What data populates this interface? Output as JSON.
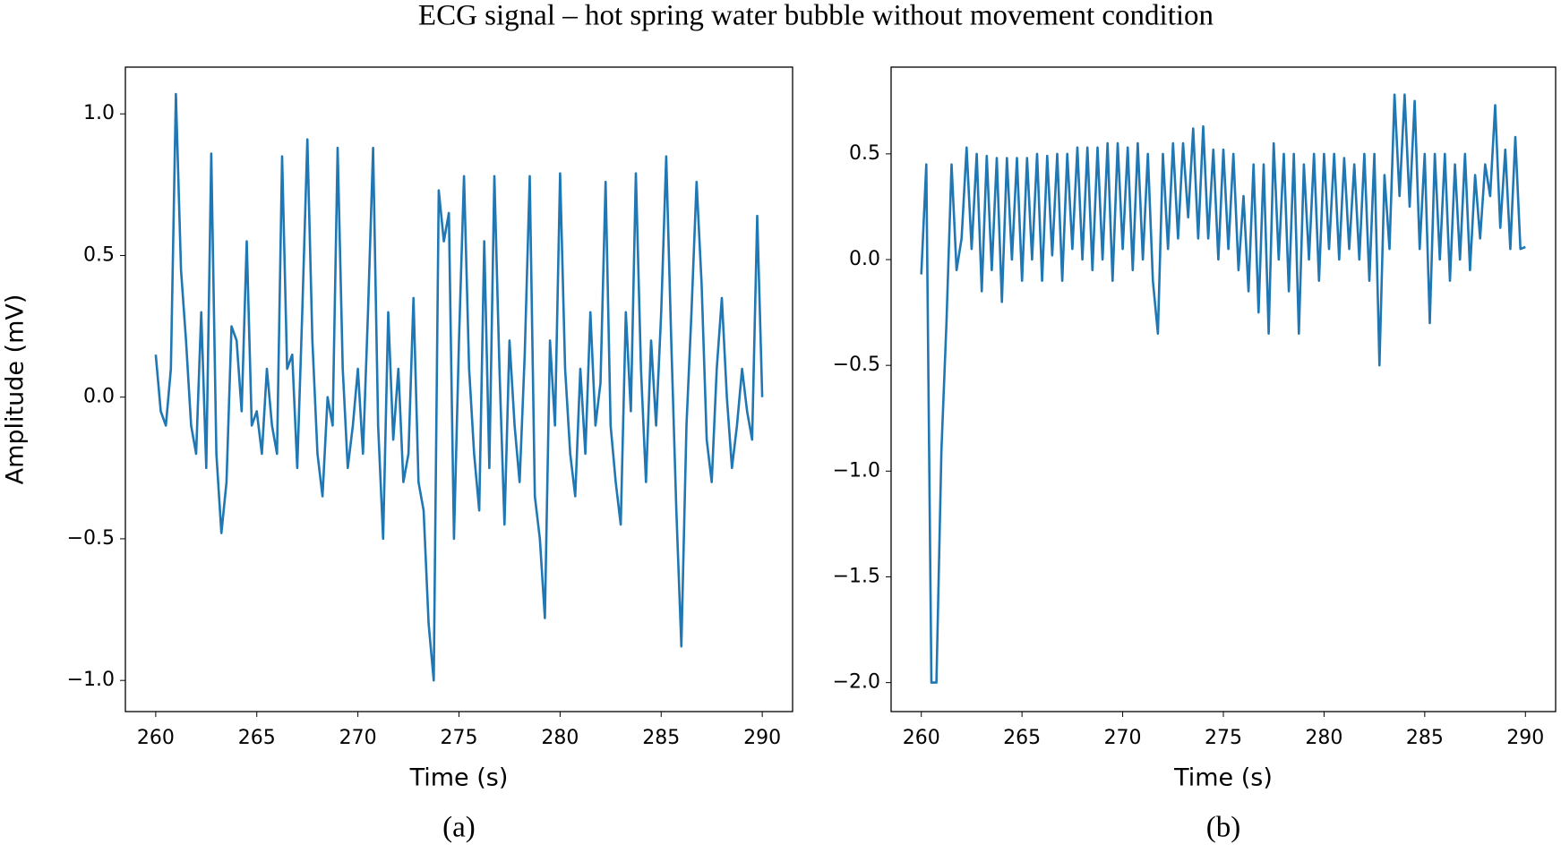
{
  "title": "ECG signal – hot spring water bubble without movement condition",
  "chart_data": [
    {
      "type": "line",
      "caption": "(a)",
      "xlabel": "Time (s)",
      "ylabel": "Amplitude (mV)",
      "color": "#1f77b4",
      "xlim": [
        258.5,
        291.5
      ],
      "ylim": [
        -1.11,
        1.165
      ],
      "xticks": [
        260,
        265,
        270,
        275,
        280,
        285,
        290
      ],
      "yticks": [
        {
          "value": -1.0,
          "label": "−1.0"
        },
        {
          "value": -0.5,
          "label": "−0.5"
        },
        {
          "value": 0,
          "label": "0.0"
        },
        0.5,
        {
          "value": 1.0,
          "label": "1.0"
        }
      ],
      "x": [
        260,
        260.25,
        260.5,
        260.75,
        261,
        261.25,
        261.5,
        261.75,
        262,
        262.25,
        262.5,
        262.75,
        263,
        263.25,
        263.5,
        263.75,
        264,
        264.25,
        264.5,
        264.75,
        265,
        265.25,
        265.5,
        265.75,
        266,
        266.25,
        266.5,
        266.75,
        267,
        267.25,
        267.5,
        267.75,
        268,
        268.25,
        268.5,
        268.75,
        269,
        269.25,
        269.5,
        269.75,
        270,
        270.25,
        270.5,
        270.75,
        271,
        271.25,
        271.5,
        271.75,
        272,
        272.25,
        272.5,
        272.75,
        273,
        273.25,
        273.5,
        273.75,
        274,
        274.25,
        274.5,
        274.75,
        275,
        275.25,
        275.5,
        275.75,
        276,
        276.25,
        276.5,
        276.75,
        277,
        277.25,
        277.5,
        277.75,
        278,
        278.25,
        278.5,
        278.75,
        279,
        279.25,
        279.5,
        279.75,
        280,
        280.25,
        280.5,
        280.75,
        281,
        281.25,
        281.5,
        281.75,
        282,
        282.25,
        282.5,
        282.75,
        283,
        283.25,
        283.5,
        283.75,
        284,
        284.25,
        284.5,
        284.75,
        285,
        285.25,
        285.5,
        285.75,
        286,
        286.25,
        286.5,
        286.75,
        287,
        287.25,
        287.5,
        287.75,
        288,
        288.25,
        288.5,
        288.75,
        289,
        289.25,
        289.5,
        289.75,
        290
      ],
      "values": [
        0.15,
        -0.05,
        -0.1,
        0.1,
        1.07,
        0.45,
        0.2,
        -0.1,
        -0.2,
        0.3,
        -0.25,
        0.86,
        -0.2,
        -0.48,
        -0.3,
        0.25,
        0.2,
        -0.05,
        0.55,
        -0.1,
        -0.05,
        -0.2,
        0.1,
        -0.1,
        -0.2,
        0.85,
        0.1,
        0.15,
        -0.25,
        0.3,
        0.91,
        0.2,
        -0.2,
        -0.35,
        0.0,
        -0.1,
        0.88,
        0.1,
        -0.25,
        -0.1,
        0.1,
        -0.2,
        0.3,
        0.88,
        -0.1,
        -0.5,
        0.3,
        -0.15,
        0.1,
        -0.3,
        -0.2,
        0.35,
        -0.3,
        -0.4,
        -0.8,
        -1.0,
        0.73,
        0.55,
        0.65,
        -0.5,
        0.2,
        0.78,
        0.1,
        -0.2,
        -0.4,
        0.55,
        -0.25,
        0.78,
        0.1,
        -0.45,
        0.2,
        -0.1,
        -0.3,
        0.15,
        0.78,
        -0.35,
        -0.5,
        -0.78,
        0.2,
        -0.1,
        0.79,
        0.1,
        -0.2,
        -0.35,
        0.1,
        -0.2,
        0.3,
        -0.1,
        0.05,
        0.76,
        -0.1,
        -0.3,
        -0.45,
        0.3,
        -0.05,
        0.79,
        0.1,
        -0.3,
        0.2,
        -0.1,
        0.3,
        0.85,
        0.2,
        -0.4,
        -0.88,
        -0.1,
        0.3,
        0.76,
        0.4,
        -0.15,
        -0.3,
        0.1,
        0.35,
        0.0,
        -0.25,
        -0.1,
        0.1,
        -0.05,
        -0.15,
        0.64,
        0.0
      ]
    },
    {
      "type": "line",
      "caption": "(b)",
      "xlabel": "Time (s)",
      "color": "#1f77b4",
      "xlim": [
        258.5,
        291.5
      ],
      "ylim": [
        -2.137,
        0.91
      ],
      "xticks": [
        260,
        265,
        270,
        275,
        280,
        285,
        290
      ],
      "yticks": [
        {
          "value": -2.0,
          "label": "−2.0"
        },
        {
          "value": -1.5,
          "label": "−1.5"
        },
        {
          "value": -1.0,
          "label": "−1.0"
        },
        {
          "value": -0.5,
          "label": "−0.5"
        },
        {
          "value": 0,
          "label": "0.0"
        },
        0.5
      ],
      "x": [
        260,
        260.25,
        260.5,
        260.75,
        261,
        261.25,
        261.5,
        261.75,
        262,
        262.25,
        262.5,
        262.75,
        263,
        263.25,
        263.5,
        263.75,
        264,
        264.25,
        264.5,
        264.75,
        265,
        265.25,
        265.5,
        265.75,
        266,
        266.25,
        266.5,
        266.75,
        267,
        267.25,
        267.5,
        267.75,
        268,
        268.25,
        268.5,
        268.75,
        269,
        269.25,
        269.5,
        269.75,
        270,
        270.25,
        270.5,
        270.75,
        271,
        271.25,
        271.5,
        271.75,
        272,
        272.25,
        272.5,
        272.75,
        273,
        273.25,
        273.5,
        273.75,
        274,
        274.25,
        274.5,
        274.75,
        275,
        275.25,
        275.5,
        275.75,
        276,
        276.25,
        276.5,
        276.75,
        277,
        277.25,
        277.5,
        277.75,
        278,
        278.25,
        278.5,
        278.75,
        279,
        279.25,
        279.5,
        279.75,
        280,
        280.25,
        280.5,
        280.75,
        281,
        281.25,
        281.5,
        281.75,
        282,
        282.25,
        282.5,
        282.75,
        283,
        283.25,
        283.5,
        283.75,
        284,
        284.25,
        284.5,
        284.75,
        285,
        285.25,
        285.5,
        285.75,
        286,
        286.25,
        286.5,
        286.75,
        287,
        287.25,
        287.5,
        287.75,
        288,
        288.25,
        288.5,
        288.75,
        289,
        289.25,
        289.5,
        289.75,
        290
      ],
      "values": [
        -0.07,
        0.45,
        -2.0,
        -2.0,
        -0.9,
        -0.3,
        0.45,
        -0.05,
        0.1,
        0.53,
        0.05,
        0.5,
        -0.15,
        0.49,
        -0.05,
        0.48,
        -0.2,
        0.48,
        0.0,
        0.48,
        -0.1,
        0.48,
        0.0,
        0.5,
        -0.1,
        0.49,
        0.02,
        0.5,
        -0.1,
        0.5,
        0.05,
        0.53,
        0.0,
        0.53,
        -0.05,
        0.53,
        0.0,
        0.55,
        -0.1,
        0.55,
        0.05,
        0.53,
        -0.05,
        0.55,
        0.0,
        0.5,
        -0.1,
        -0.35,
        0.5,
        0.05,
        0.55,
        0.1,
        0.55,
        0.2,
        0.62,
        0.1,
        0.63,
        0.1,
        0.52,
        0.0,
        0.52,
        0.05,
        0.5,
        -0.05,
        0.3,
        -0.15,
        0.45,
        -0.25,
        0.45,
        -0.35,
        0.55,
        0.0,
        0.5,
        -0.15,
        0.5,
        -0.35,
        0.45,
        0.0,
        0.5,
        -0.1,
        0.5,
        0.05,
        0.5,
        0.0,
        0.48,
        0.05,
        0.45,
        0.0,
        0.5,
        -0.1,
        0.5,
        -0.5,
        0.4,
        0.05,
        0.78,
        0.3,
        0.78,
        0.25,
        0.75,
        0.05,
        0.5,
        -0.3,
        0.5,
        0.0,
        0.5,
        -0.1,
        0.45,
        0.0,
        0.5,
        -0.05,
        0.4,
        0.1,
        0.45,
        0.3,
        0.73,
        0.15,
        0.52,
        0.05,
        0.58,
        0.05,
        0.06
      ]
    }
  ]
}
